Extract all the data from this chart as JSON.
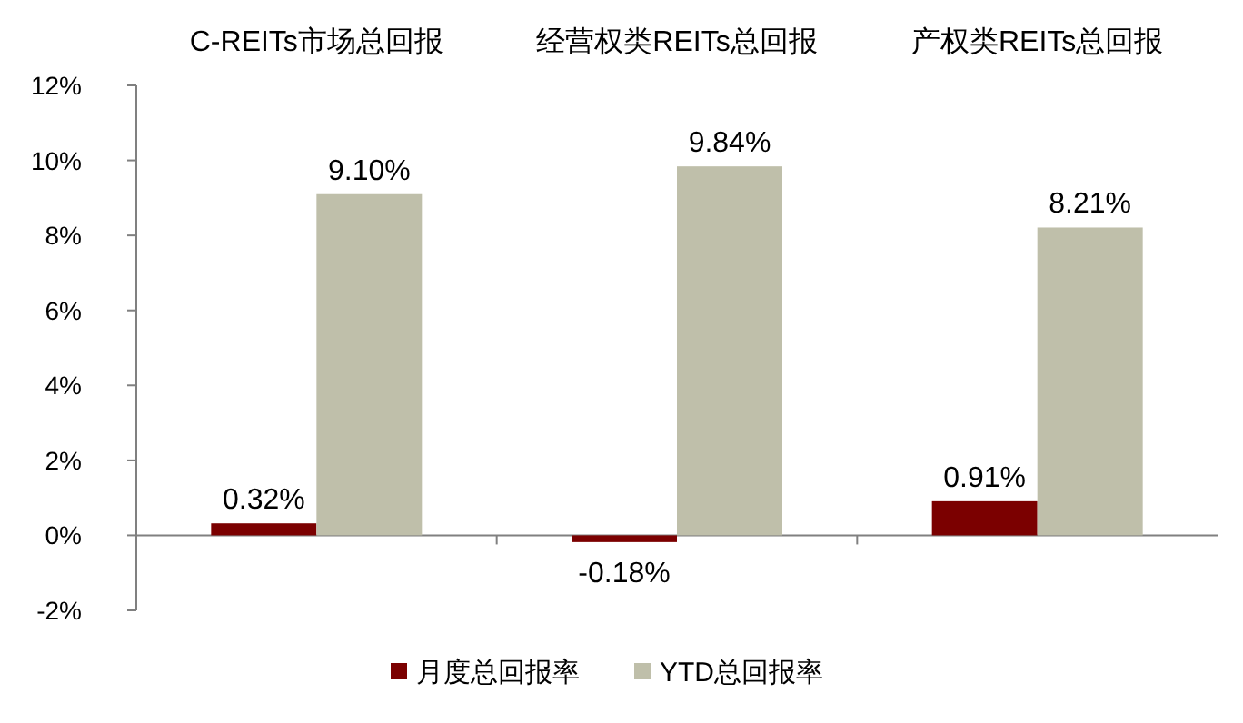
{
  "chart_data": {
    "type": "bar",
    "categories": [
      "C-REITs市场总回报",
      "经营权类REITs总回报",
      "产权类REITs总回报"
    ],
    "series": [
      {
        "name": "月度总回报率",
        "color": "#7b0000",
        "values": [
          0.32,
          -0.18,
          0.91
        ],
        "value_labels": [
          "0.32%",
          "-0.18%",
          "0.91%"
        ]
      },
      {
        "name": "YTD总回报率",
        "color": "#bfbfaa",
        "values": [
          9.1,
          9.84,
          8.21
        ],
        "value_labels": [
          "9.10%",
          "9.84%",
          "8.21%"
        ]
      }
    ],
    "ylim": [
      -2,
      12
    ],
    "yticks": [
      {
        "value": -2,
        "label": "-2%"
      },
      {
        "value": 0,
        "label": "0%"
      },
      {
        "value": 2,
        "label": "2%"
      },
      {
        "value": 4,
        "label": "4%"
      },
      {
        "value": 6,
        "label": "6%"
      },
      {
        "value": 8,
        "label": "8%"
      },
      {
        "value": 10,
        "label": "10%"
      },
      {
        "value": 12,
        "label": "12%"
      }
    ],
    "legend": "bottom"
  }
}
